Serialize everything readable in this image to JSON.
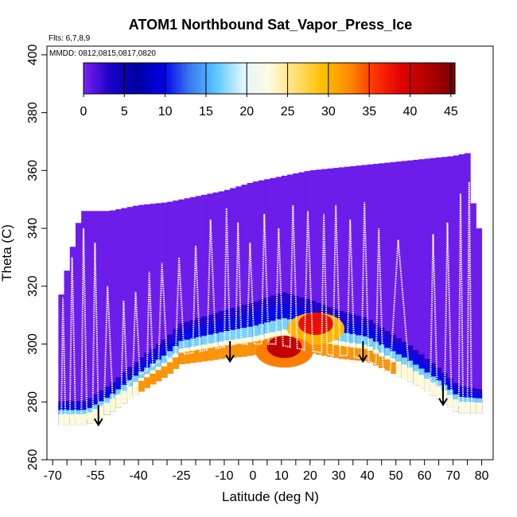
{
  "chart_data": {
    "type": "heatmap",
    "title": "ATOM1 Northbound Sat_Vapor_Press_Ice",
    "subtitle_flights": "Flts: 6,7,8,9",
    "subtitle_dates": "MMDD: 0812,0815,0817,0820",
    "xlabel": "Latitude (deg N)",
    "ylabel": "Theta (C)",
    "xlim": [
      -72,
      84
    ],
    "ylim": [
      260,
      403
    ],
    "x_ticks": [
      -70,
      -55,
      -40,
      -25,
      -10,
      0,
      10,
      20,
      30,
      40,
      50,
      60,
      70,
      80
    ],
    "x_tick_labels": [
      "-70",
      "-55",
      "-40",
      "-25",
      "-10",
      "0",
      "10",
      "20",
      "30",
      "40",
      "50",
      "60",
      "70",
      "80"
    ],
    "x_minor_ticks": [
      -65,
      -60,
      -50,
      -45,
      -35,
      -30,
      -20,
      -15,
      -5,
      5,
      15,
      25,
      35,
      45,
      55,
      65,
      75
    ],
    "y_ticks": [
      260,
      280,
      300,
      320,
      340,
      360,
      380,
      400
    ],
    "y_tick_labels": [
      "260",
      "280",
      "300",
      "320",
      "340",
      "360",
      "380",
      "400"
    ],
    "colorbar": {
      "ticks": [
        0,
        5,
        10,
        15,
        20,
        25,
        30,
        35,
        40,
        45
      ],
      "tick_labels": [
        "0",
        "5",
        "10",
        "15",
        "20",
        "25",
        "30",
        "35",
        "40",
        "45"
      ],
      "range": [
        0,
        45.5
      ],
      "colors": [
        "#7b22f0",
        "#1a00c8",
        "#0000a0",
        "#0000e8",
        "#3a78f0",
        "#58c8ff",
        "#dff4ff",
        "#fffbe0",
        "#ffe070",
        "#ffc000",
        "#ff8c00",
        "#ff3000",
        "#e00000",
        "#b00000",
        "#7a0000"
      ]
    },
    "field": {
      "description_levels": "value of Sat_Vapor_Press_Ice by latitude and theta",
      "ceiling": [
        [
          -68,
          313
        ],
        [
          -60,
          346
        ],
        [
          -50,
          346
        ],
        [
          -40,
          348
        ],
        [
          -30,
          349
        ],
        [
          -20,
          351
        ],
        [
          -10,
          353
        ],
        [
          0,
          356
        ],
        [
          10,
          358
        ],
        [
          20,
          360
        ],
        [
          30,
          361
        ],
        [
          40,
          362
        ],
        [
          50,
          363
        ],
        [
          60,
          364
        ],
        [
          70,
          365
        ],
        [
          75,
          366
        ],
        [
          78,
          340
        ]
      ],
      "floor": [
        [
          -68,
          272
        ],
        [
          -58,
          272
        ],
        [
          -50,
          276
        ],
        [
          -40,
          283
        ],
        [
          -30,
          289
        ],
        [
          -25,
          293
        ],
        [
          -10,
          295
        ],
        [
          0,
          296
        ],
        [
          11,
          298
        ],
        [
          20,
          297
        ],
        [
          30,
          295
        ],
        [
          40,
          294
        ],
        [
          55,
          287
        ],
        [
          65,
          281
        ],
        [
          72,
          276
        ],
        [
          80,
          276
        ]
      ],
      "bands": [
        {
          "value": 0.5,
          "lower_offset": 18,
          "label": "purple"
        },
        {
          "value": 3,
          "lower_offset": 14,
          "label": "dark blue"
        },
        {
          "value": 10,
          "lower_offset": 9,
          "label": "blue"
        },
        {
          "value": 17,
          "lower_offset": 5,
          "label": "light blue"
        },
        {
          "value": 23,
          "lower_offset": 3,
          "label": "pale"
        },
        {
          "value": 32,
          "lower_offset": 0,
          "label": "orange"
        }
      ],
      "hotspots": [
        {
          "lat": 22,
          "theta": 307,
          "value": 38
        },
        {
          "lat": 11,
          "theta": 299,
          "value": 41
        }
      ]
    },
    "flight_tracks": {
      "profile_latitudes": [
        -67,
        -64,
        -60,
        -56,
        -52,
        -46,
        -42,
        -37,
        -33,
        -27,
        -21,
        -16,
        -10,
        -6,
        -2,
        3,
        8,
        13,
        18,
        24,
        28,
        33,
        38,
        43,
        48,
        62,
        67,
        72,
        75
      ],
      "profile_tops": [
        316,
        330,
        340,
        335,
        320,
        315,
        318,
        325,
        328,
        330,
        334,
        343,
        347,
        342,
        335,
        345,
        340,
        348,
        346,
        345,
        348,
        343,
        349,
        340,
        336,
        338,
        342,
        352,
        356
      ],
      "profile_bottoms": [
        272,
        275,
        273,
        276,
        279,
        283,
        288,
        291,
        294,
        296,
        297,
        298,
        299,
        300,
        300,
        300,
        300,
        299,
        298,
        297,
        296,
        296,
        295,
        293,
        290,
        283,
        280,
        279,
        277
      ]
    },
    "arrows": [
      {
        "lat": -54,
        "theta": 277
      },
      {
        "lat": -8,
        "theta": 299
      },
      {
        "lat": 38.5,
        "theta": 299
      },
      {
        "lat": 66.5,
        "theta": 284
      }
    ]
  }
}
